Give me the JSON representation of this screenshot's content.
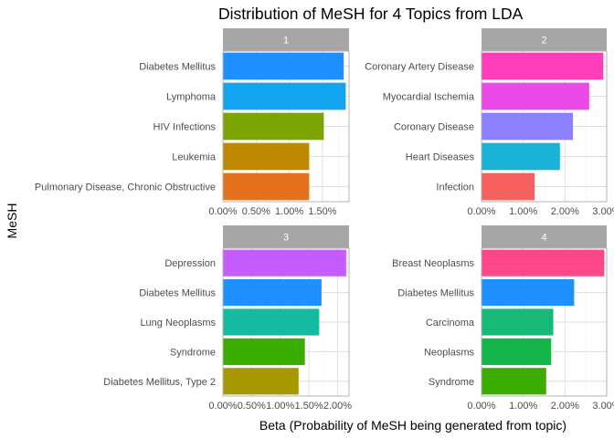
{
  "chart_data": {
    "type": "bar",
    "orientation": "horizontal",
    "title": "Distribution of MeSH for 4 Topics from LDA",
    "xlabel": "Beta (Probability of MeSH being generated from topic)",
    "ylabel": "MeSH",
    "grid": true,
    "legend": "none",
    "facets": [
      {
        "panel": "1",
        "xlim": [
          0,
          1.9
        ],
        "ticks": [
          0,
          0.5,
          1.0,
          1.5
        ],
        "tick_labels": [
          "0.00%",
          "0.50%",
          "1.00%",
          "1.50%"
        ],
        "bars": [
          {
            "label": "Diabetes Mellitus",
            "value": 1.82,
            "color": "#1F90FF"
          },
          {
            "label": "Lymphoma",
            "value": 1.85,
            "color": "#12A4EF"
          },
          {
            "label": "HIV Infections",
            "value": 1.52,
            "color": "#7CA503"
          },
          {
            "label": "Leukemia",
            "value": 1.3,
            "color": "#C08A00"
          },
          {
            "label": "Pulmonary Disease, Chronic Obstructive",
            "value": 1.3,
            "color": "#E2721B"
          }
        ]
      },
      {
        "panel": "2",
        "xlim": [
          0,
          3.0
        ],
        "ticks": [
          0,
          1,
          2,
          3
        ],
        "tick_labels": [
          "0.00%",
          "1.00%",
          "2.00%",
          "3.00%"
        ],
        "bars": [
          {
            "label": "Coronary Artery Disease",
            "value": 2.92,
            "color": "#FD3DBA"
          },
          {
            "label": "Myocardial Ischemia",
            "value": 2.58,
            "color": "#E94AE8"
          },
          {
            "label": "Coronary Disease",
            "value": 2.19,
            "color": "#8C80FF"
          },
          {
            "label": "Heart Diseases",
            "value": 1.88,
            "color": "#1AB2D6"
          },
          {
            "label": "Infection",
            "value": 1.27,
            "color": "#F6605F"
          }
        ]
      },
      {
        "panel": "3",
        "xlim": [
          0,
          2.2
        ],
        "ticks": [
          0,
          0.5,
          1.0,
          1.5,
          2.0
        ],
        "tick_labels": [
          "0.00%",
          "0.50%",
          "1.00%",
          "1.50%",
          "2.00%"
        ],
        "bars": [
          {
            "label": "Depression",
            "value": 2.15,
            "color": "#C45CFF"
          },
          {
            "label": "Diabetes Mellitus",
            "value": 1.72,
            "color": "#1F90FF"
          },
          {
            "label": "Lung Neoplasms",
            "value": 1.68,
            "color": "#16BAA0"
          },
          {
            "label": "Syndrome",
            "value": 1.43,
            "color": "#3BAD00"
          },
          {
            "label": "Diabetes Mellitus, Type 2",
            "value": 1.32,
            "color": "#A89800"
          }
        ]
      },
      {
        "panel": "4",
        "xlim": [
          0,
          3.0
        ],
        "ticks": [
          0,
          1,
          2,
          3
        ],
        "tick_labels": [
          "0.00%",
          "1.00%",
          "2.00%",
          "3.00%"
        ],
        "bars": [
          {
            "label": "Breast Neoplasms",
            "value": 2.94,
            "color": "#FD4788"
          },
          {
            "label": "Diabetes Mellitus",
            "value": 2.22,
            "color": "#1F90FF"
          },
          {
            "label": "Carcinoma",
            "value": 1.72,
            "color": "#16B978"
          },
          {
            "label": "Neoplasms",
            "value": 1.67,
            "color": "#14B54B"
          },
          {
            "label": "Syndrome",
            "value": 1.55,
            "color": "#3BAD00"
          }
        ]
      }
    ]
  },
  "colors": {
    "strip_fill": "#a6a6a6",
    "panel_border": "#b3b3b3",
    "grid_major": "#dedede",
    "grid_minor": "#f0f0f0"
  }
}
